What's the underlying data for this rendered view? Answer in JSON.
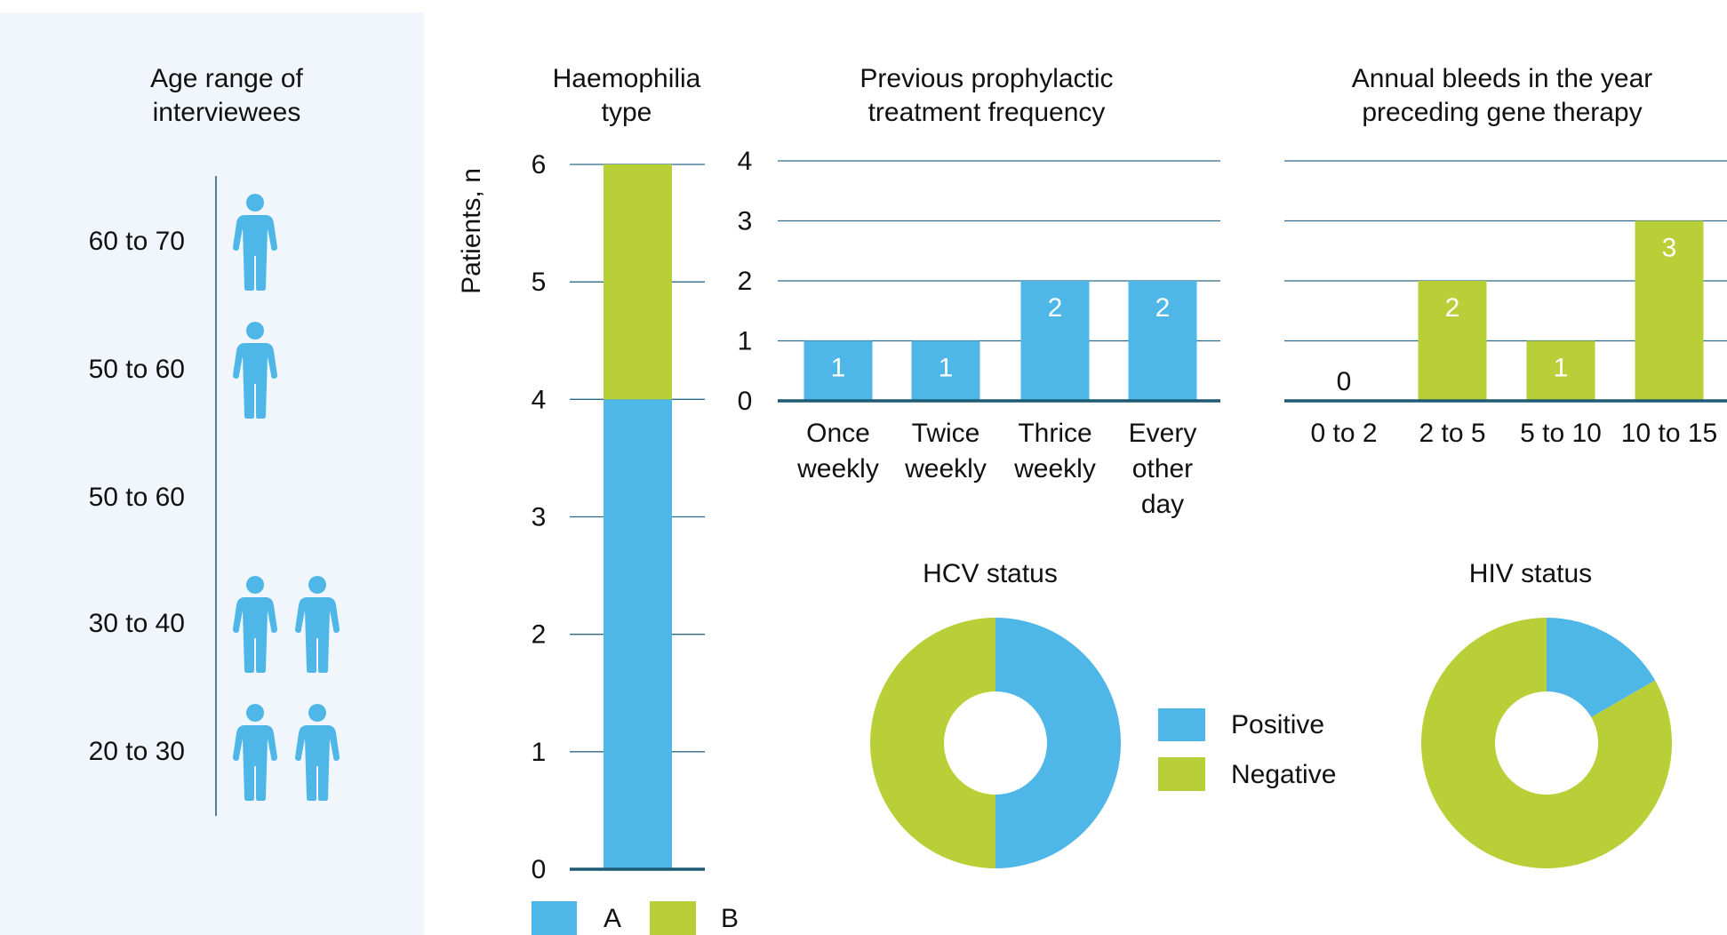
{
  "colors": {
    "blue": "#4fb6e8",
    "green": "#b8cf37",
    "panel": "#f1f6fc",
    "axis": "#1d5a73"
  },
  "age_panel": {
    "title": [
      "Age range of",
      "interviewees"
    ],
    "icon": "person-icon",
    "rows": [
      {
        "label": "60 to 70",
        "count": 1
      },
      {
        "label": "50 to 60",
        "count": 1
      },
      {
        "label": "50 to 60",
        "count": 0
      },
      {
        "label": "30 to 40",
        "count": 2
      },
      {
        "label": "20 to 30",
        "count": 2
      }
    ]
  },
  "chart_data": [
    {
      "type": "bar",
      "stacked": true,
      "title": [
        "Haemophilia",
        "type"
      ],
      "ylabel": "Patients, n",
      "ylim": [
        0,
        6
      ],
      "yticks": [
        "0",
        "1",
        "2",
        "3",
        "4",
        "5",
        "6"
      ],
      "series": [
        {
          "name": "A",
          "values": [
            4
          ]
        },
        {
          "name": "B",
          "values": [
            2
          ]
        }
      ],
      "legend": [
        {
          "label": "A",
          "color": "#4fb6e8"
        },
        {
          "label": "B",
          "color": "#b8cf37"
        }
      ],
      "legend_position": "bottom",
      "grid": true
    },
    {
      "type": "bar",
      "title": [
        "Previous prophylactic",
        "treatment frequency"
      ],
      "ylim": [
        0,
        4
      ],
      "yticks": [
        "0",
        "1",
        "2",
        "3",
        "4"
      ],
      "categories": [
        [
          "Once",
          "weekly"
        ],
        [
          "Twice",
          "weekly"
        ],
        [
          "Thrice",
          "weekly"
        ],
        [
          "Every",
          "other",
          "day"
        ]
      ],
      "values": [
        1,
        1,
        2,
        2
      ],
      "color": "#4fb6e8",
      "grid": true
    },
    {
      "type": "bar",
      "title": [
        "Annual bleeds in the year",
        "preceding gene therapy"
      ],
      "ylim": [
        0,
        4
      ],
      "categories": [
        [
          "0 to 2"
        ],
        [
          "2 to 5"
        ],
        [
          "5 to 10"
        ],
        [
          "10 to 15"
        ]
      ],
      "values": [
        0,
        2,
        1,
        3
      ],
      "color": "#b8cf37",
      "grid": true
    },
    {
      "type": "pie",
      "donut": true,
      "title": "HCV status",
      "slices": [
        {
          "name": "Positive",
          "value": 3
        },
        {
          "name": "Negative",
          "value": 3
        }
      ]
    },
    {
      "type": "pie",
      "donut": true,
      "title": "HIV status",
      "slices": [
        {
          "name": "Positive",
          "value": 1
        },
        {
          "name": "Negative",
          "value": 5
        }
      ]
    }
  ],
  "status_legend": [
    {
      "label": "Positive",
      "color": "#4fb6e8"
    },
    {
      "label": "Negative",
      "color": "#b8cf37"
    }
  ]
}
